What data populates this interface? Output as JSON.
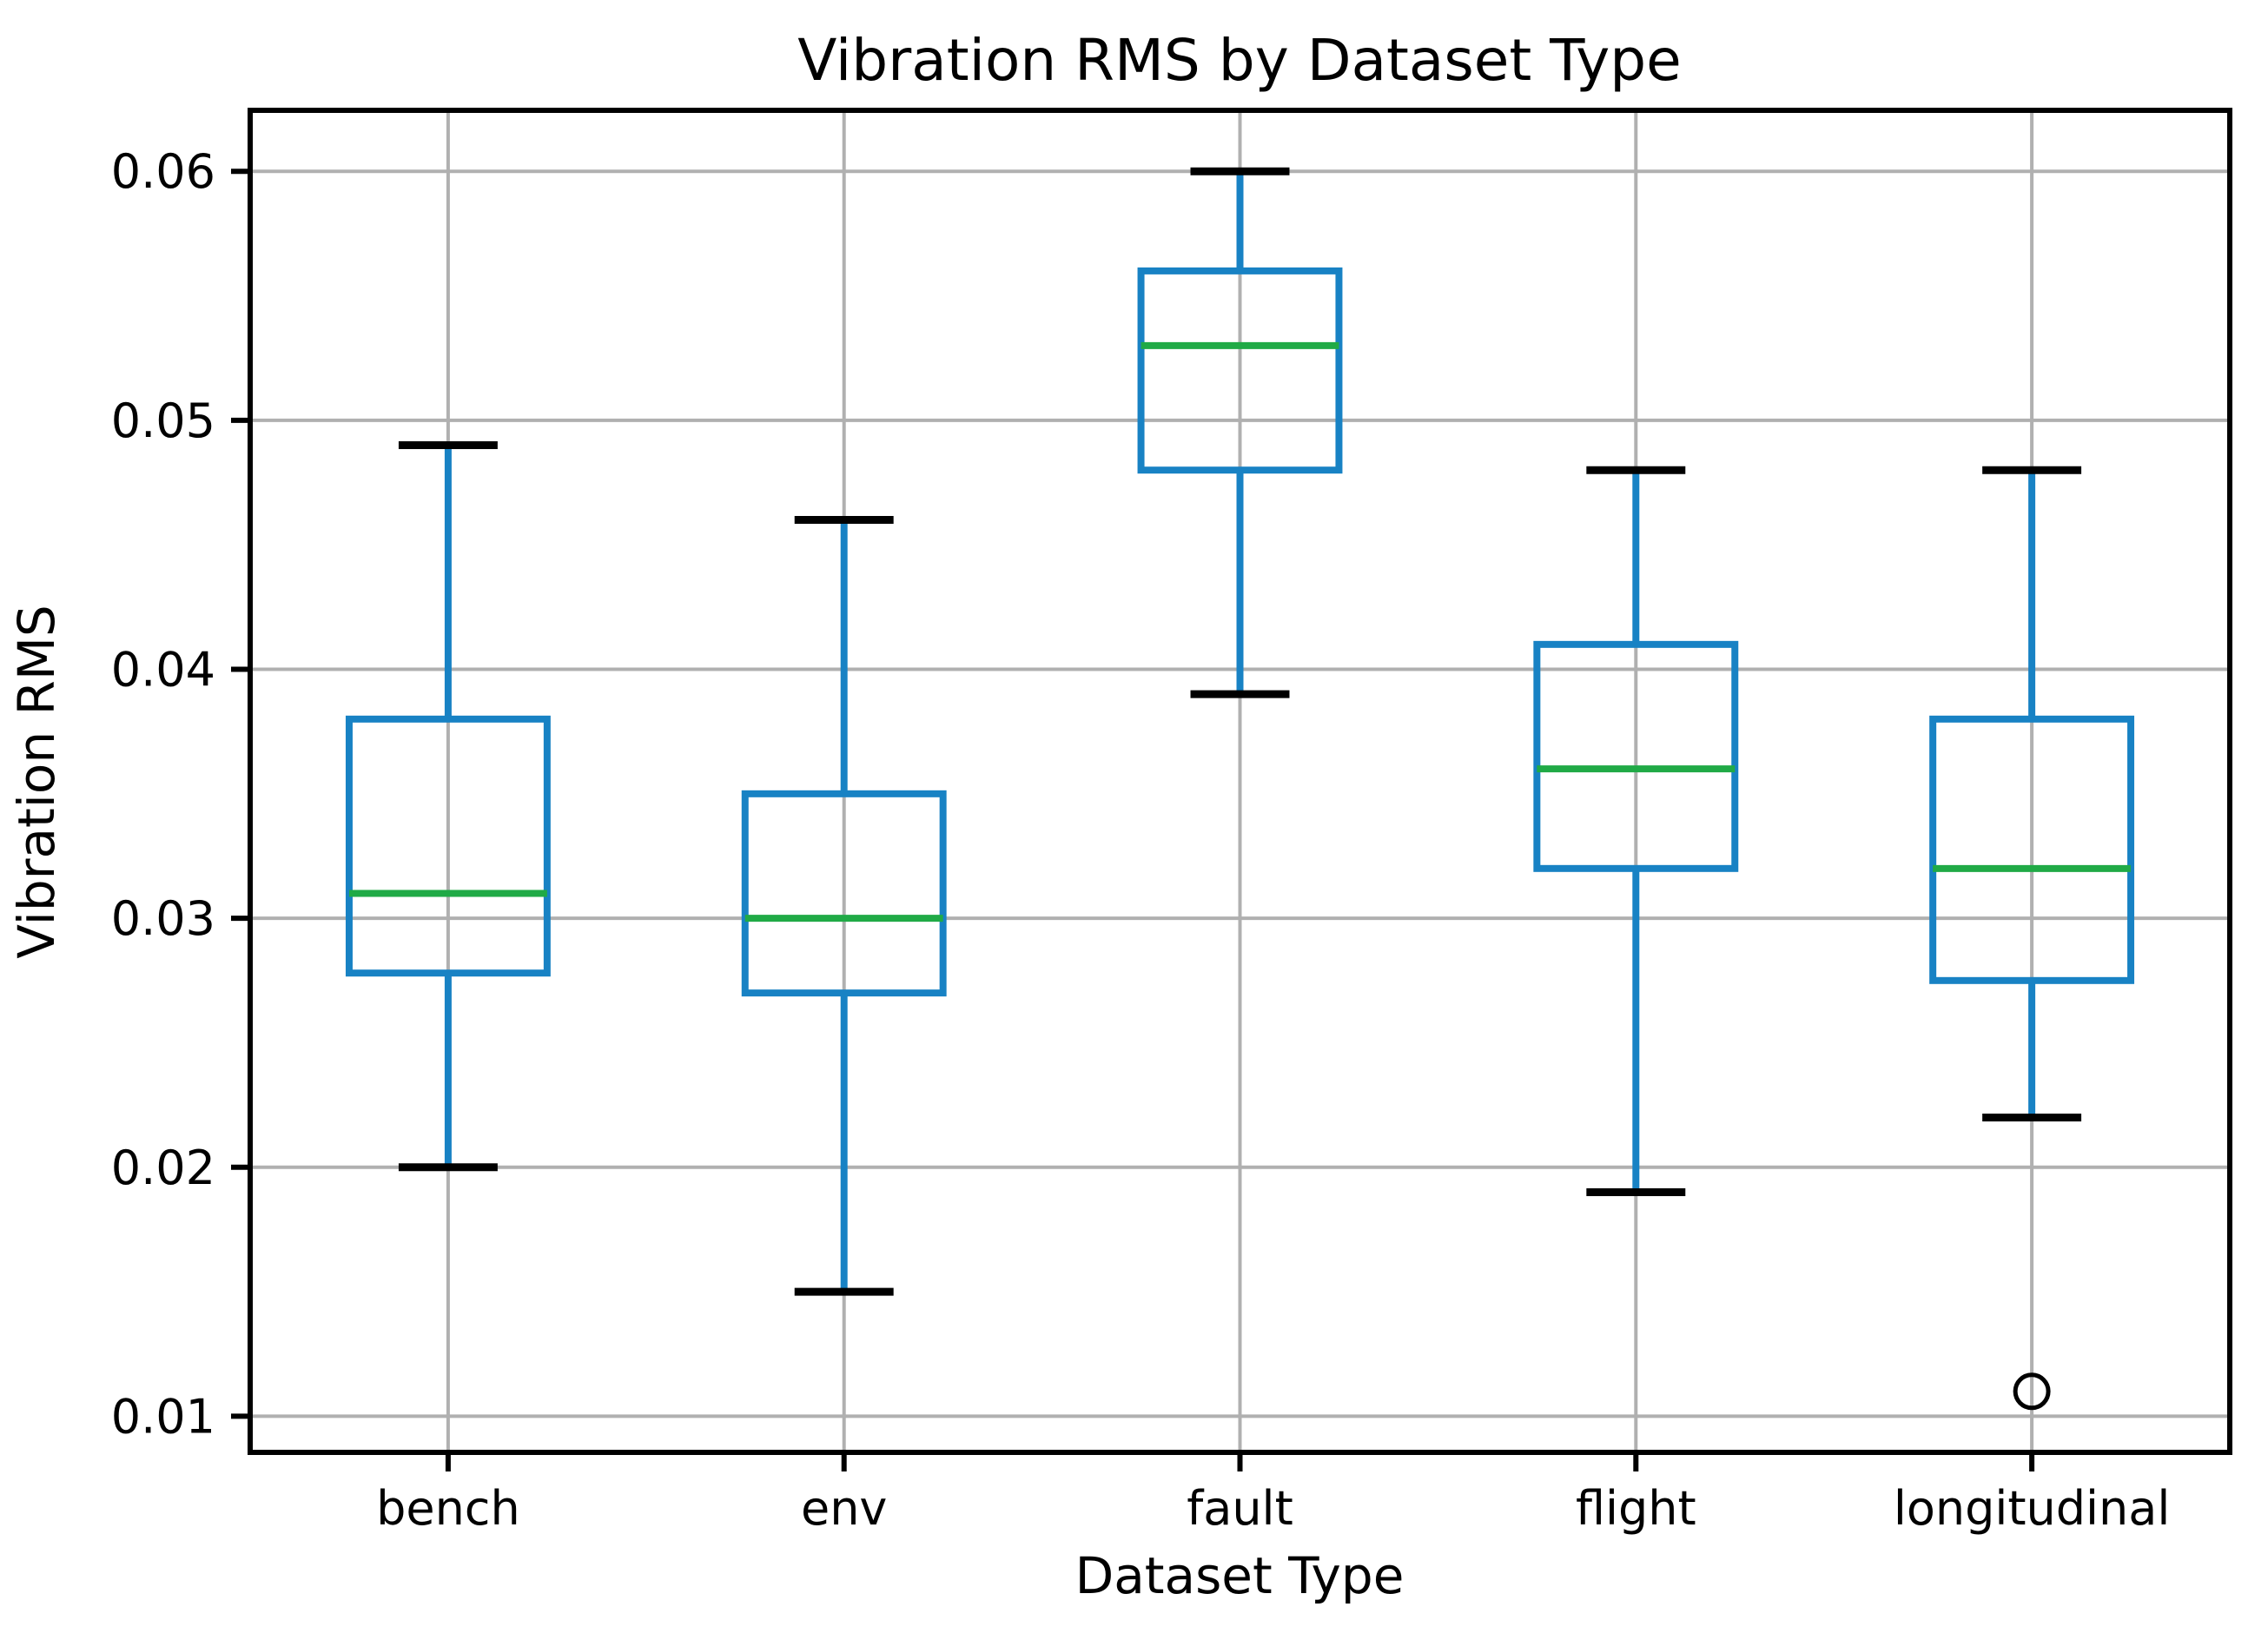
{
  "chart_data": {
    "type": "boxplot",
    "title": "Vibration RMS by Dataset Type",
    "xlabel": "Dataset Type",
    "ylabel": "Vibration RMS",
    "categories": [
      "bench",
      "env",
      "fault",
      "flight",
      "longitudinal"
    ],
    "series": [
      {
        "name": "bench",
        "whislo": 0.02,
        "q1": 0.0278,
        "med": 0.031,
        "q3": 0.038,
        "whishi": 0.049,
        "fliers": []
      },
      {
        "name": "env",
        "whislo": 0.015,
        "q1": 0.027,
        "med": 0.03,
        "q3": 0.035,
        "whishi": 0.046,
        "fliers": []
      },
      {
        "name": "fault",
        "whislo": 0.039,
        "q1": 0.048,
        "med": 0.053,
        "q3": 0.056,
        "whishi": 0.06,
        "fliers": []
      },
      {
        "name": "flight",
        "whislo": 0.019,
        "q1": 0.032,
        "med": 0.036,
        "q3": 0.041,
        "whishi": 0.048,
        "fliers": []
      },
      {
        "name": "longitudinal",
        "whislo": 0.022,
        "q1": 0.0275,
        "med": 0.032,
        "q3": 0.038,
        "whishi": 0.048,
        "fliers": [
          0.011
        ]
      }
    ],
    "yticks": [
      0.01,
      0.02,
      0.03,
      0.04,
      0.05,
      0.06
    ],
    "ytick_labels": [
      "0.01",
      "0.02",
      "0.03",
      "0.04",
      "0.05",
      "0.06"
    ],
    "ylim": [
      0.00855,
      0.06245
    ],
    "grid": true,
    "legend": null,
    "colors": {
      "box": "#1882c4",
      "whisker": "#1882c4",
      "median": "#20aa46",
      "cap": "#000000",
      "flier_edge": "#000000",
      "grid": "#b0b0b0",
      "spine": "#000000",
      "text": "#000000",
      "background": "#ffffff"
    }
  }
}
